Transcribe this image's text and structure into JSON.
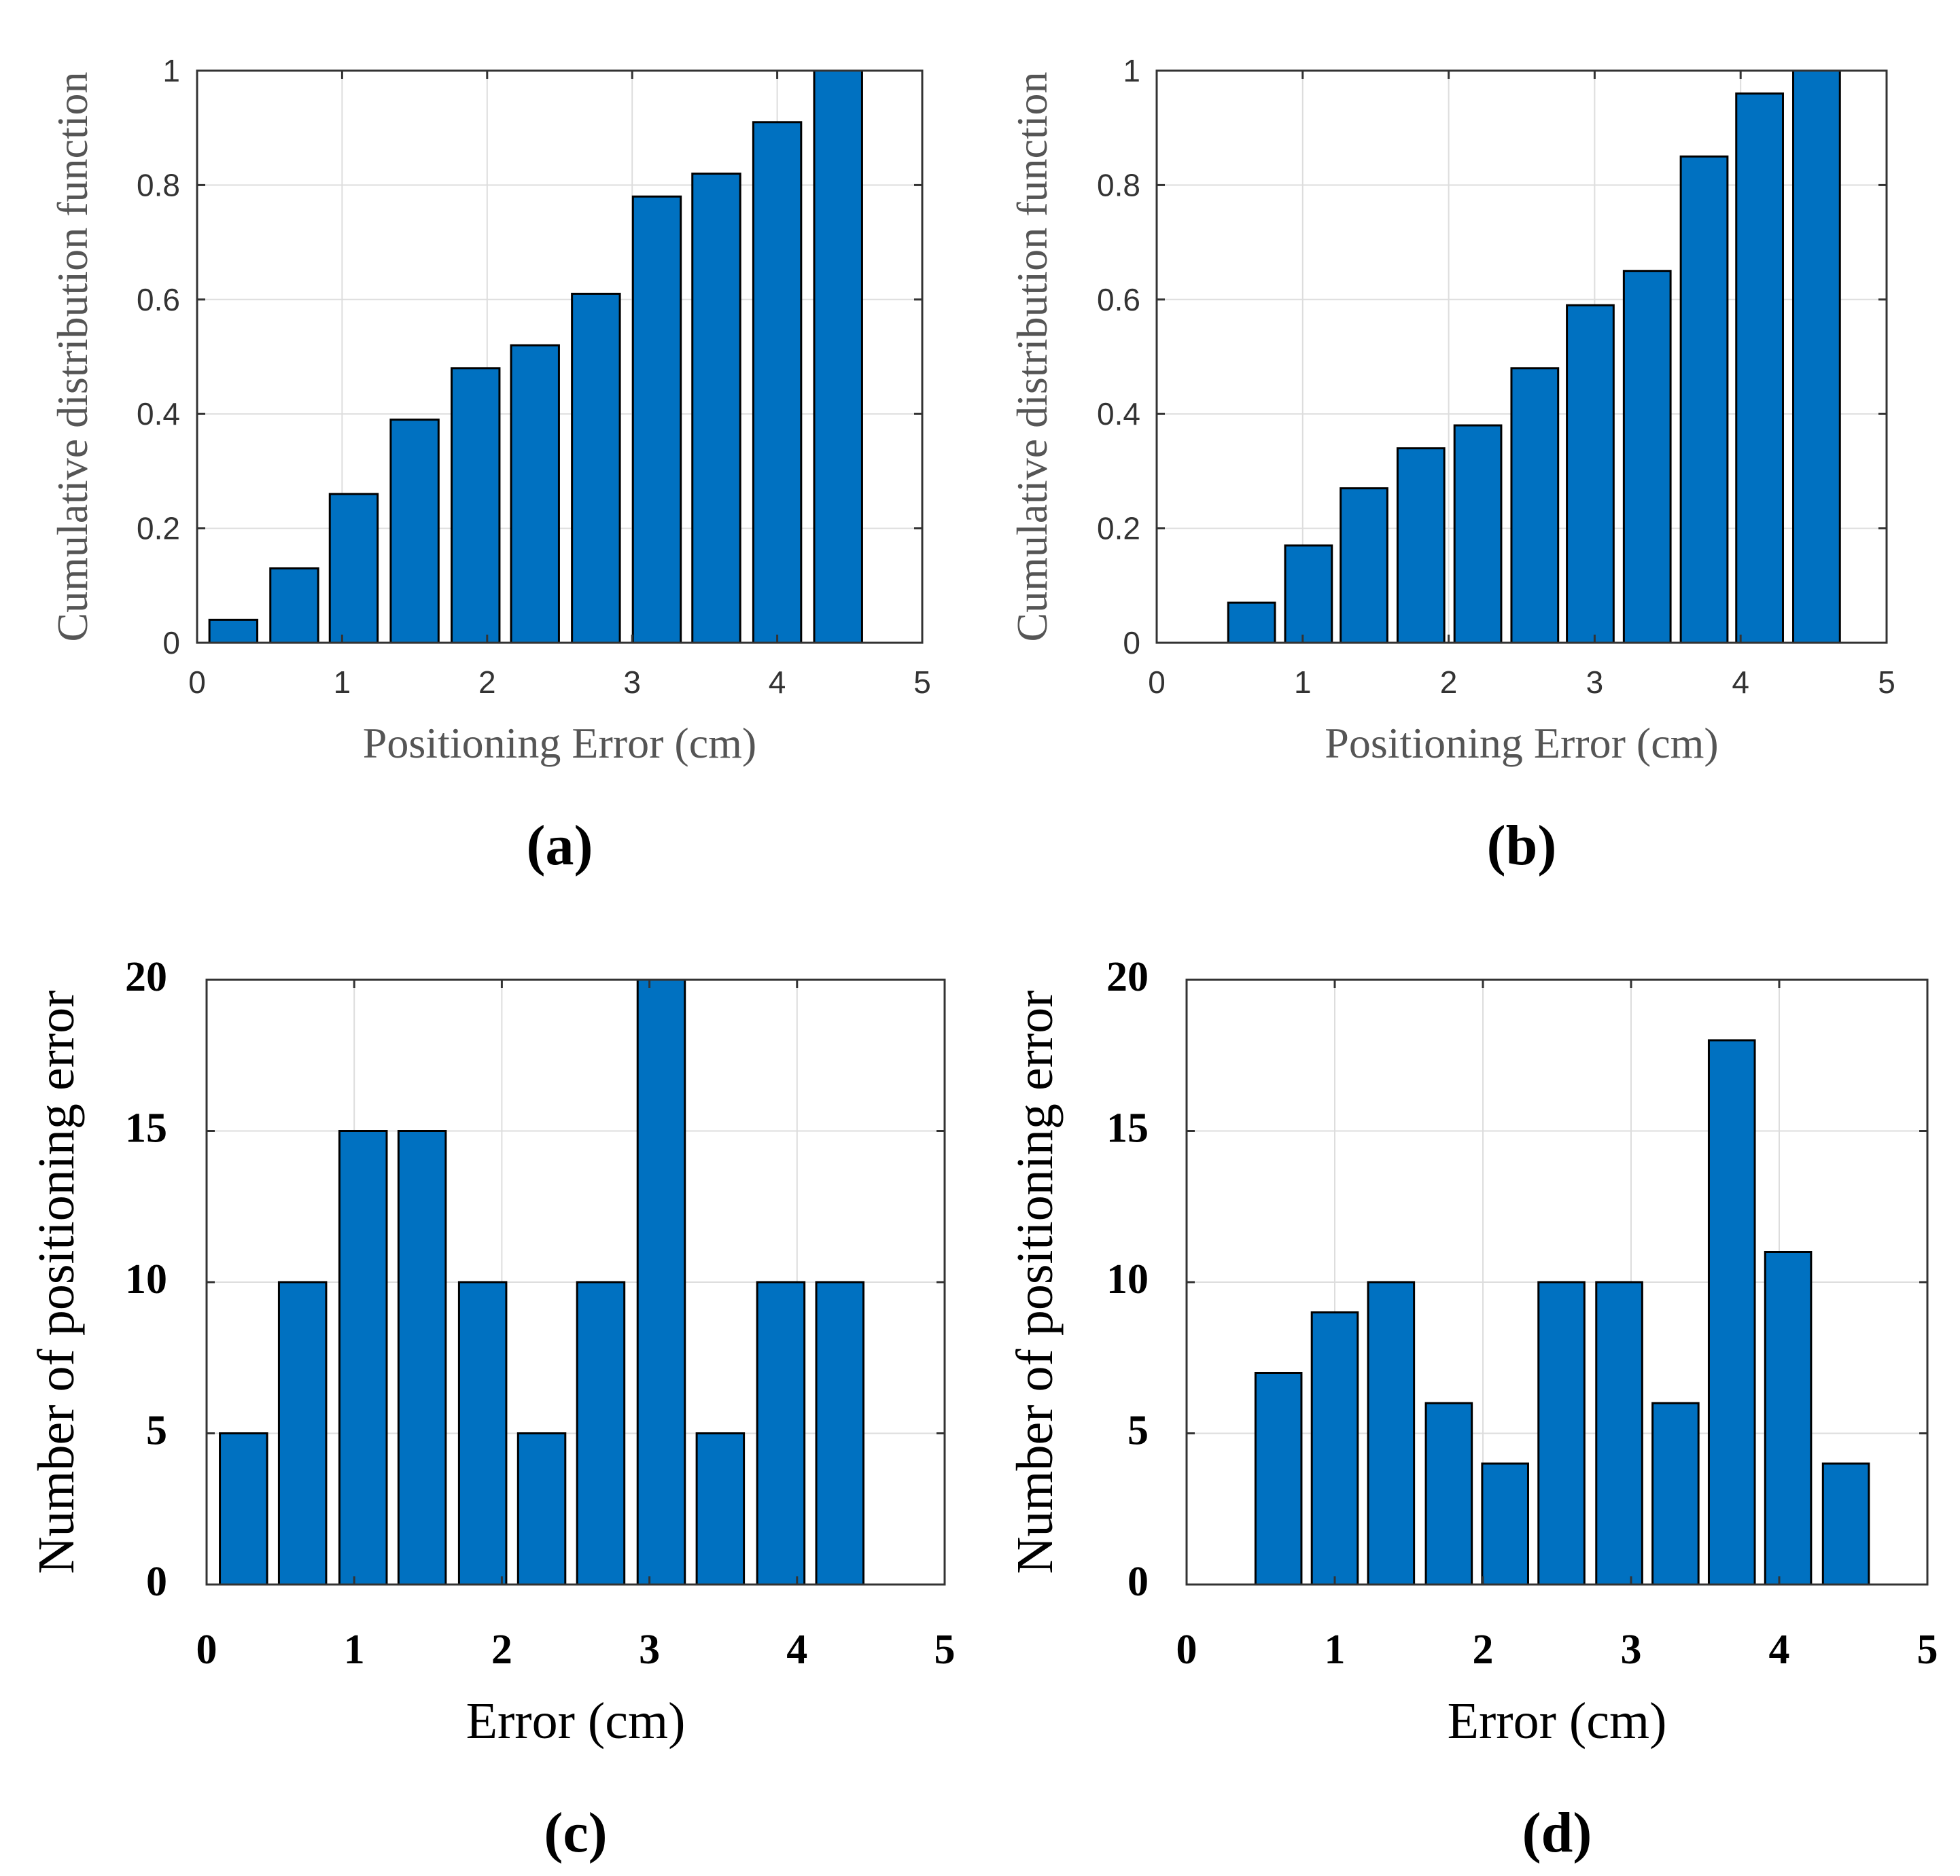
{
  "figure": {
    "bar_color": "#0071c1",
    "bar_edge": "#000000",
    "grid_color": "#dddddd"
  },
  "chart_data": [
    {
      "type": "bar",
      "panel_label": "(a)",
      "xlabel": "Positioning Error (cm)",
      "ylabel": "Cumulative distribution function",
      "xlim": [
        0,
        5
      ],
      "ylim": [
        0,
        1
      ],
      "xticks": [
        "0",
        "1",
        "2",
        "3",
        "4",
        "5"
      ],
      "yticks": [
        "0",
        "0.2",
        "0.4",
        "0.6",
        "0.8",
        "1"
      ],
      "x": [
        0.25,
        0.67,
        1.08,
        1.5,
        1.92,
        2.33,
        2.75,
        3.17,
        3.58,
        4.0,
        4.42
      ],
      "values": [
        0.04,
        0.13,
        0.26,
        0.39,
        0.48,
        0.52,
        0.61,
        0.78,
        0.82,
        0.91,
        1.0
      ],
      "bar_width": 0.33
    },
    {
      "type": "bar",
      "panel_label": "(b)",
      "xlabel": "Positioning Error (cm)",
      "ylabel": "Cumulative distribution function",
      "xlim": [
        0,
        5
      ],
      "ylim": [
        0,
        1
      ],
      "xticks": [
        "0",
        "1",
        "2",
        "3",
        "4",
        "5"
      ],
      "yticks": [
        "0",
        "0.2",
        "0.4",
        "0.6",
        "0.8",
        "1"
      ],
      "x": [
        0.65,
        1.04,
        1.42,
        1.81,
        2.2,
        2.59,
        2.97,
        3.36,
        3.75,
        4.13,
        4.52
      ],
      "values": [
        0.07,
        0.17,
        0.27,
        0.34,
        0.38,
        0.48,
        0.59,
        0.65,
        0.85,
        0.96,
        1.0
      ],
      "bar_width": 0.32
    },
    {
      "type": "bar",
      "panel_label": "(c)",
      "xlabel": "Error (cm)",
      "ylabel": "Number of positioning error",
      "xlim": [
        0,
        5
      ],
      "ylim": [
        0,
        20
      ],
      "xticks": [
        "0",
        "1",
        "2",
        "3",
        "4",
        "5"
      ],
      "yticks": [
        "0",
        "5",
        "10",
        "15",
        "20"
      ],
      "x": [
        0.25,
        0.65,
        1.06,
        1.46,
        1.87,
        2.27,
        2.67,
        3.08,
        3.48,
        3.89,
        4.29
      ],
      "values": [
        5,
        10,
        15,
        15,
        10,
        5,
        10,
        20,
        5,
        10,
        10
      ],
      "bar_width": 0.32
    },
    {
      "type": "bar",
      "panel_label": "(d)",
      "xlabel": "Error (cm)",
      "ylabel": "Number of positioning error",
      "xlim": [
        0,
        5
      ],
      "ylim": [
        0,
        20
      ],
      "xticks": [
        "0",
        "1",
        "2",
        "3",
        "4",
        "5"
      ],
      "yticks": [
        "0",
        "5",
        "10",
        "15",
        "20"
      ],
      "x": [
        0.62,
        1.0,
        1.38,
        1.77,
        2.15,
        2.53,
        2.92,
        3.3,
        3.68,
        4.06,
        4.45
      ],
      "values": [
        7,
        9,
        10,
        6,
        4,
        10,
        10,
        6,
        18,
        11,
        4
      ],
      "bar_width": 0.31
    }
  ]
}
